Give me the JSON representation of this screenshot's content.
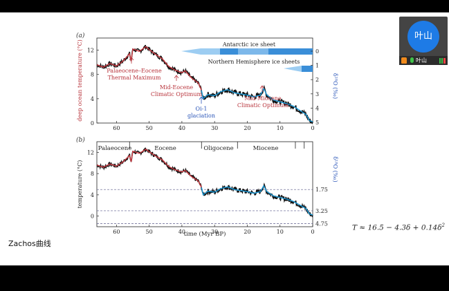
{
  "video": {
    "avatar_text": "叶山",
    "name": "叶山"
  },
  "caption": "Zachos曲线",
  "formula": {
    "lhs": "T ≈ 16.5 − 4.3δ + 0.14δ",
    "sup": "2"
  },
  "colors": {
    "warm": "#c8383f",
    "cold": "#1a9ad8",
    "ice": "#3a8ed8",
    "ice_light": "#9dcdf2",
    "annotation_red": "#b8343c",
    "annotation_blue": "#2a55b8",
    "dashed": "#5a5a8a"
  },
  "chart_data": [
    {
      "panel": "(a)",
      "type": "line",
      "xlim": [
        66,
        0
      ],
      "ylim": [
        0,
        14
      ],
      "x_ticks": [
        60,
        50,
        40,
        30,
        20,
        10,
        0
      ],
      "y_ticks": [
        0,
        4,
        8,
        12
      ],
      "ylabel": "deep ocean temperature (°C)",
      "ylabel2": "δ¹⁸O (‰)",
      "y2_ticks": [
        "0",
        "1",
        "2",
        "3",
        "4",
        "5"
      ],
      "series_points": [
        [
          66,
          9.6
        ],
        [
          64,
          9.2
        ],
        [
          62,
          9.8
        ],
        [
          60,
          9.4
        ],
        [
          58,
          10.2
        ],
        [
          56,
          11.4
        ],
        [
          55.5,
          10.2
        ],
        [
          55,
          12.2
        ],
        [
          53,
          11.8
        ],
        [
          51,
          12.6
        ],
        [
          50,
          12.1
        ],
        [
          48,
          11.3
        ],
        [
          46,
          10.6
        ],
        [
          44,
          9.3
        ],
        [
          42,
          8.7
        ],
        [
          40,
          8.3
        ],
        [
          39,
          8.6
        ],
        [
          37,
          7.4
        ],
        [
          35,
          6.6
        ],
        [
          34,
          5.4
        ],
        [
          33.5,
          4.0
        ],
        [
          32,
          4.7
        ],
        [
          30,
          4.5
        ],
        [
          28,
          5.2
        ],
        [
          26,
          5.5
        ],
        [
          24,
          5.0
        ],
        [
          22,
          4.8
        ],
        [
          20,
          4.6
        ],
        [
          18,
          4.3
        ],
        [
          16,
          4.6
        ],
        [
          15,
          5.7
        ],
        [
          14,
          4.6
        ],
        [
          12,
          3.8
        ],
        [
          10,
          3.5
        ],
        [
          8,
          3.2
        ],
        [
          6,
          2.8
        ],
        [
          4,
          2.1
        ],
        [
          2,
          1.4
        ],
        [
          1,
          0.4
        ],
        [
          0,
          0.2
        ]
      ],
      "warm_until": 34,
      "ice_sheets": [
        {
          "label": "Antarctic ice sheet"
        },
        {
          "label": "Northern Hemisphere ice sheets"
        }
      ],
      "annotations": [
        {
          "lines": [
            "Palaeocene–Eocene",
            "Thermal Maximum"
          ],
          "color": "red"
        },
        {
          "lines": [
            "Mid-Eocene",
            "Climatic Optimum"
          ],
          "color": "red"
        },
        {
          "lines": [
            "Oi-1",
            "glaciation"
          ],
          "color": "blue"
        },
        {
          "lines": [
            "Mid-Miocene",
            "Climatic Optimum"
          ],
          "color": "red"
        }
      ]
    },
    {
      "panel": "(b)",
      "type": "line",
      "xlim": [
        66,
        0
      ],
      "ylim": [
        -2,
        14
      ],
      "x_ticks": [
        60,
        50,
        40,
        30,
        20,
        10,
        0
      ],
      "y_ticks": [
        0,
        4,
        8,
        12
      ],
      "xlabel": "time (Myr BP)",
      "ylabel": "temperature (°C)",
      "ylabel2": "δ¹⁸O (‰)",
      "dashed_levels": [
        {
          "label": "1.75",
          "temperature": 5
        },
        {
          "label": "3.25",
          "temperature": 1
        },
        {
          "label": "4.75",
          "temperature": -1.4
        }
      ],
      "epochs": [
        "Palaeocene",
        "Eocene",
        "Oligocene",
        "Miocene"
      ],
      "series_points": [
        [
          66,
          9.6
        ],
        [
          64,
          9.2
        ],
        [
          62,
          9.8
        ],
        [
          60,
          9.4
        ],
        [
          58,
          10.2
        ],
        [
          56,
          11.4
        ],
        [
          55.5,
          10.2
        ],
        [
          55,
          12.2
        ],
        [
          53,
          11.8
        ],
        [
          51,
          12.6
        ],
        [
          50,
          12.1
        ],
        [
          48,
          11.3
        ],
        [
          46,
          10.6
        ],
        [
          44,
          9.3
        ],
        [
          42,
          8.7
        ],
        [
          40,
          8.3
        ],
        [
          39,
          8.6
        ],
        [
          37,
          7.4
        ],
        [
          35,
          6.6
        ],
        [
          34,
          5.4
        ],
        [
          33.5,
          4.0
        ],
        [
          32,
          4.7
        ],
        [
          30,
          4.5
        ],
        [
          28,
          5.2
        ],
        [
          26,
          5.5
        ],
        [
          24,
          5.0
        ],
        [
          22,
          4.8
        ],
        [
          20,
          4.6
        ],
        [
          18,
          4.3
        ],
        [
          16,
          4.6
        ],
        [
          15,
          5.7
        ],
        [
          14,
          4.6
        ],
        [
          12,
          3.8
        ],
        [
          10,
          3.5
        ],
        [
          8,
          3.2
        ],
        [
          6,
          2.8
        ],
        [
          4,
          2.1
        ],
        [
          2,
          1.4
        ],
        [
          1,
          0.4
        ],
        [
          0,
          0.2
        ]
      ],
      "warm_until": 34
    }
  ]
}
